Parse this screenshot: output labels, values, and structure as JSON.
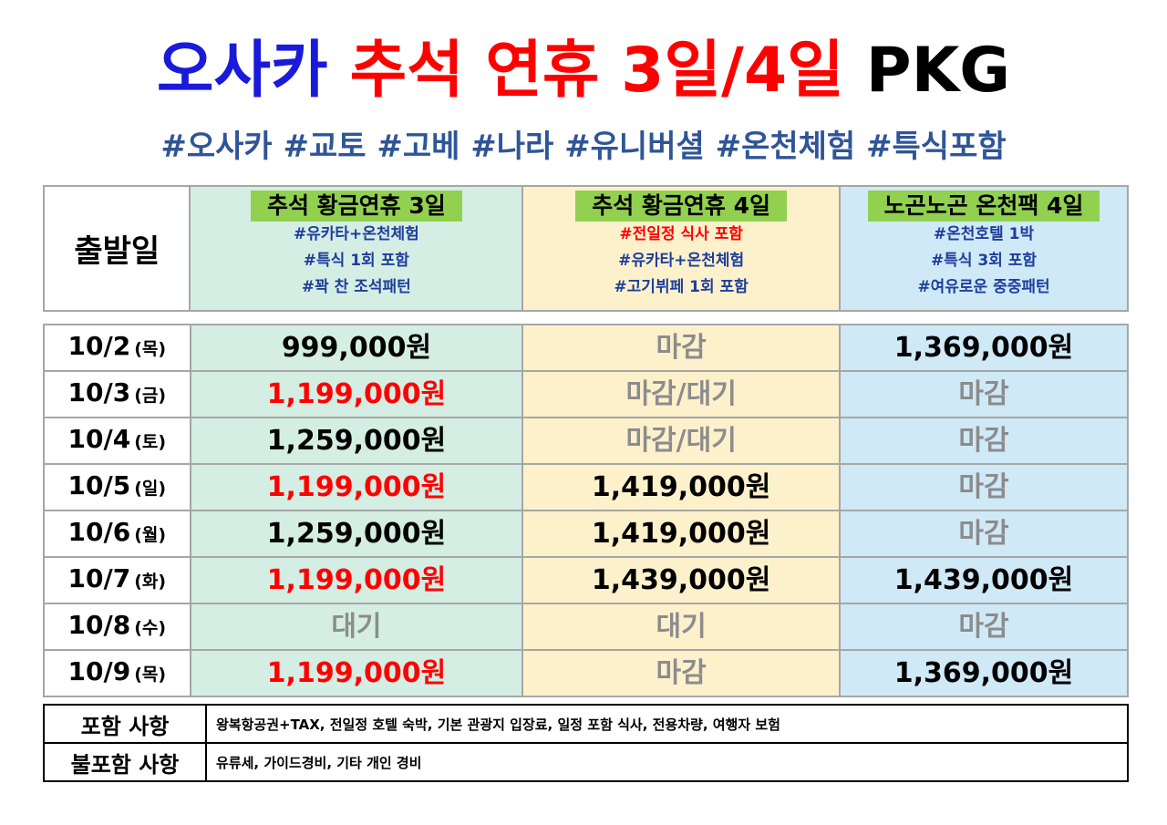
{
  "title": {
    "part1": "오사카",
    "part2": "추석 연휴 3일/4일",
    "part3": "PKG"
  },
  "hashtags": "#오사카 #교토 #고베 #나라 #유니버셜 #온천체험 #특식포함",
  "header": {
    "departure_label": "출발일",
    "packages": [
      {
        "title": "추석 황금연휴 3일",
        "lines": [
          "#유카타+온천체험",
          "#특식 1회 포함",
          "#꽉 찬 조석패턴"
        ]
      },
      {
        "title": "추석 황금연휴 4일",
        "lines": [
          "#전일정 식사 포함",
          "#유카타+온천체험",
          "#고기뷔페 1회 포함"
        ]
      },
      {
        "title": "노곤노곤 온천팩 4일",
        "lines": [
          "#온천호텔 1박",
          "#특식 3회 포함",
          "#여유로운 중중패턴"
        ]
      }
    ]
  },
  "rows": [
    {
      "date": "10/2",
      "day": "(목)",
      "p1": "999,000원",
      "p2": "마감",
      "p3": "1,369,000원"
    },
    {
      "date": "10/3",
      "day": "(금)",
      "p1": "1,199,000원",
      "p2": "마감/대기",
      "p3": "마감"
    },
    {
      "date": "10/4",
      "day": "(토)",
      "p1": "1,259,000원",
      "p2": "마감/대기",
      "p3": "마감"
    },
    {
      "date": "10/5",
      "day": "(일)",
      "p1": "1,199,000원",
      "p2": "1,419,000원",
      "p3": "마감"
    },
    {
      "date": "10/6",
      "day": "(월)",
      "p1": "1,259,000원",
      "p2": "1,419,000원",
      "p3": "마감"
    },
    {
      "date": "10/7",
      "day": "(화)",
      "p1": "1,199,000원",
      "p2": "1,439,000원",
      "p3": "1,439,000원"
    },
    {
      "date": "10/8",
      "day": "(수)",
      "p1": "대기",
      "p2": "대기",
      "p3": "마감"
    },
    {
      "date": "10/9",
      "day": "(목)",
      "p1": "1,199,000원",
      "p2": "마감",
      "p3": "1,369,000원"
    }
  ],
  "included": {
    "label": "포함 사항",
    "value": "왕복항공권+TAX, 전일정 호텔 숙박, 기본 관광지 입장료, 일정 포함 식사, 전용차량, 여행자 보험"
  },
  "excluded": {
    "label": "불포함 사항",
    "value": "유류세, 가이드경비, 기타 개인 경비"
  },
  "colors": {
    "blue": "#1a1adb",
    "red": "#ff0000",
    "hashtag": "#2f5597",
    "highlight": "#92d050",
    "grey": "#8c8c8c"
  }
}
